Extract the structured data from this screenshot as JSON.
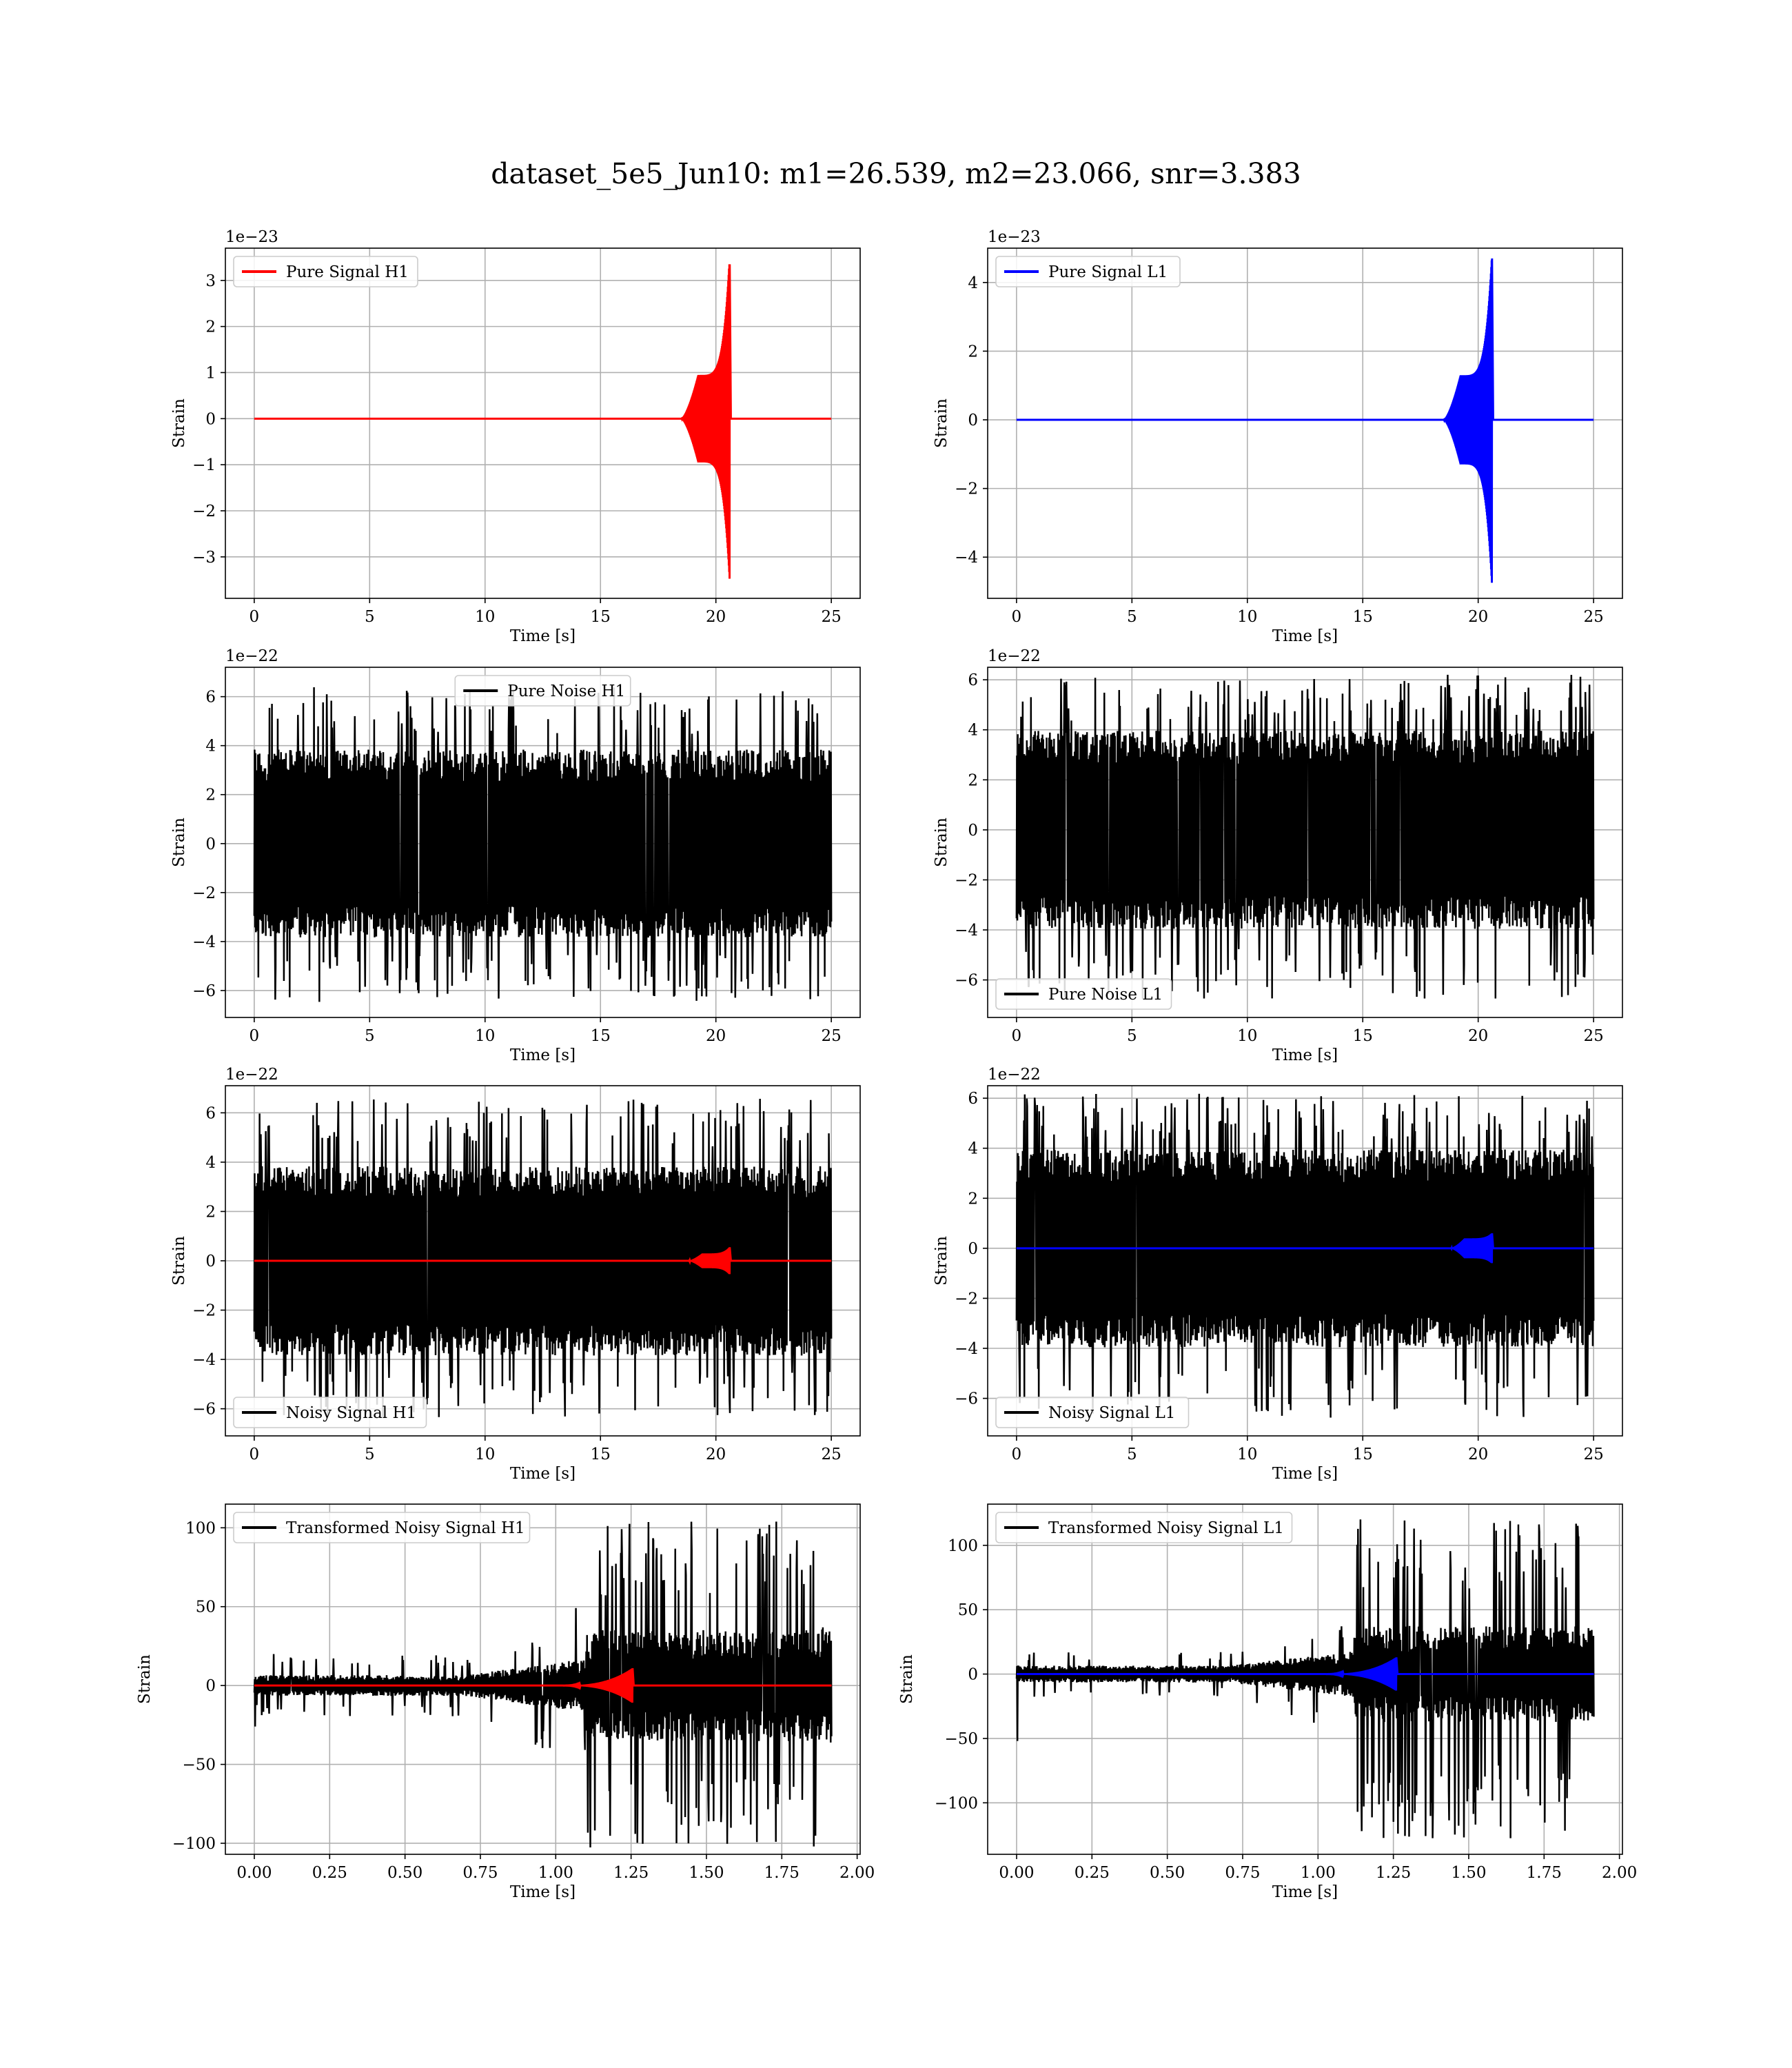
{
  "title": "dataset_5e5_Jun10: m1=26.539, m2=23.066, snr=3.383",
  "chart_data": [
    {
      "type": "line",
      "kind": "signal",
      "legend": {
        "label": "Pure Signal H1",
        "color": "#ff0000",
        "position": "upper left"
      },
      "xlabel": "Time [s]",
      "ylabel": "Strain",
      "offset": "1e−23",
      "xlim": [
        -1.25,
        26.25
      ],
      "ylim": [
        -3.9,
        3.7
      ],
      "xticks": [
        0,
        5,
        10,
        15,
        20,
        25
      ],
      "xtick_labels": [
        "0",
        "5",
        "10",
        "15",
        "20",
        "25"
      ],
      "yticks": [
        -3,
        -2,
        -1,
        0,
        1,
        2,
        3
      ],
      "ytick_labels": [
        "−3",
        "−2",
        "−1",
        "0",
        "1",
        "2",
        "3"
      ],
      "grid": true,
      "series": [
        {
          "color": "#ff0000",
          "t_start": 0,
          "t_end": 25,
          "onset": 18.5,
          "plateau": 0.95,
          "merger": 20.6,
          "peak_pos": 3.35,
          "peak_neg": -3.55
        }
      ]
    },
    {
      "type": "line",
      "kind": "signal",
      "legend": {
        "label": "Pure Signal L1",
        "color": "#0000ff",
        "position": "upper left"
      },
      "xlabel": "Time [s]",
      "ylabel": "Strain",
      "offset": "1e−23",
      "xlim": [
        -1.25,
        26.25
      ],
      "ylim": [
        -5.2,
        5.0
      ],
      "xticks": [
        0,
        5,
        10,
        15,
        20,
        25
      ],
      "xtick_labels": [
        "0",
        "5",
        "10",
        "15",
        "20",
        "25"
      ],
      "yticks": [
        -4,
        -2,
        0,
        2,
        4
      ],
      "ytick_labels": [
        "−4",
        "−2",
        "0",
        "2",
        "4"
      ],
      "grid": true,
      "series": [
        {
          "color": "#0000ff",
          "t_start": 0,
          "t_end": 25,
          "onset": 18.5,
          "plateau": 1.3,
          "merger": 20.6,
          "peak_pos": 4.7,
          "peak_neg": -4.85
        }
      ]
    },
    {
      "type": "line",
      "kind": "noise",
      "legend": {
        "label": "Pure Noise H1",
        "color": "#000000",
        "position": "upper center"
      },
      "xlabel": "Time [s]",
      "ylabel": "Strain",
      "offset": "1e−22",
      "xlim": [
        -1.25,
        26.25
      ],
      "ylim": [
        -7.1,
        7.2
      ],
      "xticks": [
        0,
        5,
        10,
        15,
        20,
        25
      ],
      "xtick_labels": [
        "0",
        "5",
        "10",
        "15",
        "20",
        "25"
      ],
      "yticks": [
        -6,
        -4,
        -2,
        0,
        2,
        4,
        6
      ],
      "ytick_labels": [
        "−6",
        "−4",
        "−2",
        "0",
        "2",
        "4",
        "6"
      ],
      "grid": true,
      "series": [
        {
          "color": "#000000",
          "t_start": 0,
          "t_end": 25,
          "core": 3.2,
          "spike_max": 6.4,
          "spike_min": -6.5
        }
      ]
    },
    {
      "type": "line",
      "kind": "noise",
      "legend": {
        "label": "Pure Noise L1",
        "color": "#000000",
        "position": "lower left"
      },
      "xlabel": "Time [s]",
      "ylabel": "Strain",
      "offset": "1e−22",
      "xlim": [
        -1.25,
        26.25
      ],
      "ylim": [
        -7.5,
        6.5
      ],
      "xticks": [
        0,
        5,
        10,
        15,
        20,
        25
      ],
      "xtick_labels": [
        "0",
        "5",
        "10",
        "15",
        "20",
        "25"
      ],
      "yticks": [
        -6,
        -4,
        -2,
        0,
        2,
        4,
        6
      ],
      "ytick_labels": [
        "−6",
        "−4",
        "−2",
        "0",
        "2",
        "4",
        "6"
      ],
      "grid": true,
      "series": [
        {
          "color": "#000000",
          "t_start": 0,
          "t_end": 25,
          "core": 3.3,
          "spike_max": 6.2,
          "spike_min": -6.8
        }
      ]
    },
    {
      "type": "line",
      "kind": "noisy",
      "legend": {
        "label": "Noisy Signal H1",
        "color": "#000000",
        "position": "lower left"
      },
      "xlabel": "Time [s]",
      "ylabel": "Strain",
      "offset": "1e−22",
      "xlim": [
        -1.25,
        26.25
      ],
      "ylim": [
        -7.1,
        7.1
      ],
      "xticks": [
        0,
        5,
        10,
        15,
        20,
        25
      ],
      "xtick_labels": [
        "0",
        "5",
        "10",
        "15",
        "20",
        "25"
      ],
      "yticks": [
        -6,
        -4,
        -2,
        0,
        2,
        4,
        6
      ],
      "ytick_labels": [
        "−6",
        "−4",
        "−2",
        "0",
        "2",
        "4",
        "6"
      ],
      "grid": true,
      "series": [
        {
          "color": "#000000",
          "t_start": 0,
          "t_end": 25,
          "core": 3.2,
          "spike_max": 6.6,
          "spike_min": -6.4
        },
        {
          "color": "#ff0000",
          "t_start": 0,
          "t_end": 25,
          "onset": 18.8,
          "plateau": 0.3,
          "merger": 20.6,
          "peak_pos": 0.55,
          "peak_neg": -0.55
        }
      ]
    },
    {
      "type": "line",
      "kind": "noisy",
      "legend": {
        "label": "Noisy Signal L1",
        "color": "#000000",
        "position": "lower left"
      },
      "xlabel": "Time [s]",
      "ylabel": "Strain",
      "offset": "1e−22",
      "xlim": [
        -1.25,
        26.25
      ],
      "ylim": [
        -7.5,
        6.5
      ],
      "xticks": [
        0,
        5,
        10,
        15,
        20,
        25
      ],
      "xtick_labels": [
        "0",
        "5",
        "10",
        "15",
        "20",
        "25"
      ],
      "yticks": [
        -6,
        -4,
        -2,
        0,
        2,
        4,
        6
      ],
      "ytick_labels": [
        "−6",
        "−4",
        "−2",
        "0",
        "2",
        "4",
        "6"
      ],
      "grid": true,
      "series": [
        {
          "color": "#000000",
          "t_start": 0,
          "t_end": 25,
          "core": 3.3,
          "spike_max": 6.2,
          "spike_min": -6.8
        },
        {
          "color": "#0000ff",
          "t_start": 0,
          "t_end": 25,
          "onset": 18.8,
          "plateau": 0.4,
          "merger": 20.6,
          "peak_pos": 0.6,
          "peak_neg": -0.6
        }
      ]
    },
    {
      "type": "line",
      "kind": "transformed",
      "legend": {
        "label": "Transformed Noisy Signal H1",
        "color": "#000000",
        "position": "upper left"
      },
      "xlabel": "Time [s]",
      "ylabel": "Strain",
      "offset": "",
      "xlim": [
        -0.096,
        2.01
      ],
      "ylim": [
        -107,
        115
      ],
      "xticks": [
        0,
        0.25,
        0.5,
        0.75,
        1.0,
        1.25,
        1.5,
        1.75,
        2.0
      ],
      "xtick_labels": [
        "0.00",
        "0.25",
        "0.50",
        "0.75",
        "1.00",
        "1.25",
        "1.50",
        "1.75",
        "2.00"
      ],
      "yticks": [
        -100,
        -50,
        0,
        50,
        100
      ],
      "ytick_labels": [
        "−100",
        "−50",
        "0",
        "50",
        "100"
      ],
      "grid": true,
      "series": [
        {
          "color": "#000000",
          "t_start": 0,
          "t_end": 1.915,
          "pre_core": 6,
          "pre_spike": 20,
          "burst_start": 1.1,
          "burst_end": 1.87,
          "burst_core": 32,
          "spike_max": 104,
          "spike_min": -103,
          "start_dip": -26
        },
        {
          "color": "#ff0000",
          "t_start": 0,
          "t_end": 1.915,
          "onset": 1.0,
          "merger": 1.255,
          "peak_pos": 11,
          "peak_neg": -11
        }
      ]
    },
    {
      "type": "line",
      "kind": "transformed",
      "legend": {
        "label": "Transformed Noisy Signal L1",
        "color": "#000000",
        "position": "upper left"
      },
      "xlabel": "Time [s]",
      "ylabel": "Strain",
      "offset": "",
      "xlim": [
        -0.096,
        2.01
      ],
      "ylim": [
        -140,
        132
      ],
      "xticks": [
        0,
        0.25,
        0.5,
        0.75,
        1.0,
        1.25,
        1.5,
        1.75,
        2.0
      ],
      "xtick_labels": [
        "0.00",
        "0.25",
        "0.50",
        "0.75",
        "1.00",
        "1.25",
        "1.50",
        "1.75",
        "2.00"
      ],
      "yticks": [
        -100,
        -50,
        0,
        50,
        100
      ],
      "ytick_labels": [
        "−100",
        "−50",
        "0",
        "50",
        "100"
      ],
      "grid": true,
      "series": [
        {
          "color": "#000000",
          "t_start": 0,
          "t_end": 1.915,
          "pre_core": 6,
          "pre_spike": 18,
          "burst_start": 1.12,
          "burst_end": 1.87,
          "burst_core": 34,
          "spike_max": 121,
          "spike_min": -128,
          "start_dip": -52
        },
        {
          "color": "#0000ff",
          "t_start": 0,
          "t_end": 1.915,
          "onset": 1.0,
          "merger": 1.26,
          "peak_pos": 13,
          "peak_neg": -13
        }
      ]
    }
  ]
}
